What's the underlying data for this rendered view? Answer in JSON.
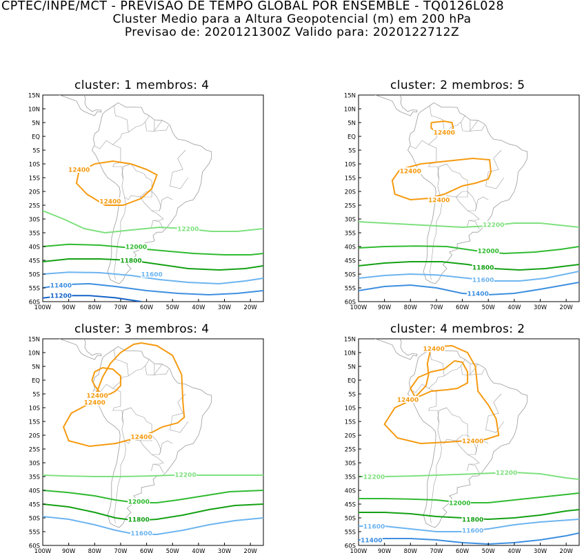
{
  "header": {
    "line1": "CPTEC/INPE/MCT - PREVISAO DE TEMPO GLOBAL POR ENSEMBLE - TQ0126L028",
    "line2": "Cluster Medio para a Altura Geopotencial (m) em 200 hPa",
    "line3": "Previsao de: 2020121300Z    Valido para: 2020122712Z"
  },
  "lat_labels": [
    "15N",
    "10N",
    "5N",
    "EQ",
    "5S",
    "10S",
    "15S",
    "20S",
    "25S",
    "30S",
    "35S",
    "40S",
    "45S",
    "50S",
    "55S",
    "60S"
  ],
  "lon_labels": [
    "100W",
    "90W",
    "80W",
    "70W",
    "60W",
    "50W",
    "40W",
    "30W",
    "20W"
  ],
  "colors": {
    "c12400": "#f59a0f",
    "c12200": "#7ee07e",
    "c12000": "#2fba2f",
    "c11800": "#12a012",
    "c11600": "#6cb4f0",
    "c11400": "#3c8ee0",
    "c11200": "#1463c8",
    "land": "#9a9a9a"
  },
  "panels": [
    {
      "title": "cluster: 1   membros: 4",
      "contours": [
        {
          "level": "12400",
          "labels": [
            "12400",
            "12400"
          ]
        },
        {
          "level": "12200",
          "labels": [
            "12200"
          ]
        },
        {
          "level": "12000",
          "labels": [
            "12000"
          ]
        },
        {
          "level": "11800",
          "labels": [
            "11800"
          ]
        },
        {
          "level": "11600",
          "labels": [
            "11600"
          ]
        },
        {
          "level": "11400",
          "labels": [
            "11400"
          ]
        },
        {
          "level": "11200",
          "labels": [
            "11200"
          ]
        }
      ]
    },
    {
      "title": "cluster: 2   membros: 5",
      "contours": [
        {
          "level": "12400",
          "labels": [
            "12400",
            "12400",
            "12400"
          ]
        },
        {
          "level": "12200",
          "labels": [
            "12200"
          ]
        },
        {
          "level": "12000",
          "labels": [
            "12000"
          ]
        },
        {
          "level": "11800",
          "labels": [
            "11800"
          ]
        },
        {
          "level": "11600",
          "labels": [
            "11600"
          ]
        },
        {
          "level": "11400",
          "labels": [
            "11400"
          ]
        }
      ]
    },
    {
      "title": "cluster: 3   membros: 4",
      "contours": [
        {
          "level": "12400",
          "labels": [
            "12400",
            "12400",
            "12400"
          ]
        },
        {
          "level": "12200",
          "labels": [
            "12200"
          ]
        },
        {
          "level": "12000",
          "labels": [
            "12000"
          ]
        },
        {
          "level": "11800",
          "labels": [
            "11800"
          ]
        },
        {
          "level": "11600",
          "labels": [
            "11600"
          ]
        }
      ]
    },
    {
      "title": "cluster: 4   membros: 2",
      "contours": [
        {
          "level": "12400",
          "labels": [
            "12400",
            "12400",
            "12400"
          ]
        },
        {
          "level": "12200",
          "labels": [
            "12200",
            "12200"
          ]
        },
        {
          "level": "12000",
          "labels": [
            "12000"
          ]
        },
        {
          "level": "11800",
          "labels": [
            "11800"
          ]
        },
        {
          "level": "11600",
          "labels": [
            "11600",
            "11600"
          ]
        },
        {
          "level": "11400",
          "labels": [
            "11400"
          ]
        }
      ]
    }
  ]
}
